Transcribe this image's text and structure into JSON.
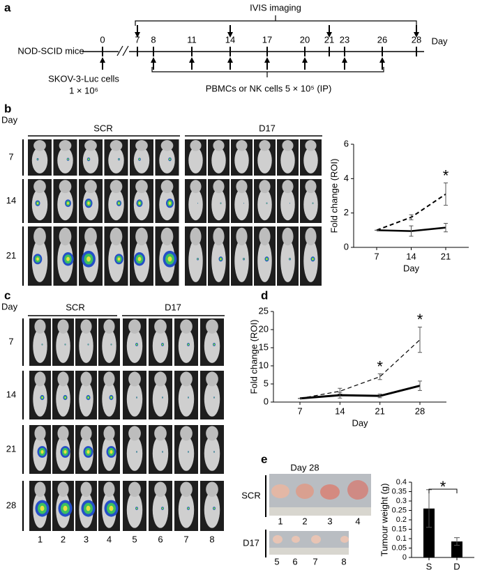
{
  "figure": {
    "a": {
      "label": "a",
      "imaging": "IVIS imaging",
      "mice": "NOD-SCID mice",
      "day": "Day",
      "days": [
        "0",
        "7",
        "8",
        "11",
        "14",
        "17",
        "20",
        "21",
        "23",
        "26",
        "28"
      ],
      "cells": "SKOV-3-Luc cells",
      "dose": "1 × 10⁶",
      "treatment": "PBMCs or NK cells 5 × 10⁵ (IP)"
    },
    "b": {
      "label": "b",
      "day": "Day",
      "groups": [
        "SCR",
        "D17"
      ],
      "rows": [
        "7",
        "14",
        "21"
      ]
    },
    "c": {
      "label": "c",
      "day": "Day",
      "groups": [
        "SCR",
        "D17"
      ],
      "rows": [
        "7",
        "14",
        "21",
        "28"
      ],
      "mice": [
        "1",
        "2",
        "3",
        "4",
        "5",
        "6",
        "7",
        "8"
      ]
    },
    "d": {
      "label": "d"
    },
    "e": {
      "label": "e",
      "photo_title": "Day 28",
      "groups": [
        "SCR",
        "D17"
      ],
      "tumours": [
        [
          "1",
          "2",
          "3",
          "4"
        ],
        [
          "5",
          "6",
          "7",
          "8"
        ]
      ]
    }
  },
  "chart_data": [
    {
      "type": "line",
      "xlabel": "Day",
      "ylabel": "Fold change (ROI)",
      "categories": [
        "7",
        "14",
        "21"
      ],
      "ylim": [
        0,
        6
      ],
      "yticks": [
        0,
        2,
        4,
        6
      ],
      "series": [
        {
          "color": "#000000",
          "dash": true,
          "values": [
            1,
            1.75,
            3.1
          ],
          "errors": [
            0,
            0.15,
            0.65
          ]
        },
        {
          "color": "#000000",
          "dash": false,
          "values": [
            1,
            0.95,
            1.15
          ],
          "errors": [
            0,
            0.3,
            0.25
          ]
        }
      ],
      "annotations": [
        "*"
      ]
    },
    {
      "type": "line",
      "xlabel": "Day",
      "ylabel": "Fold change (ROI)",
      "categories": [
        "7",
        "14",
        "21",
        "28"
      ],
      "ylim": [
        0,
        25
      ],
      "yticks": [
        0,
        5,
        10,
        15,
        20,
        25
      ],
      "series": [
        {
          "color": "#000000",
          "dash": true,
          "values": [
            1,
            3,
            7,
            17.2
          ],
          "errors": [
            0,
            0.8,
            0.8,
            3.5
          ]
        },
        {
          "color": "#000000",
          "dash": false,
          "values": [
            1,
            1.9,
            1.7,
            4.5
          ],
          "errors": [
            0,
            0.8,
            0.5,
            1.3
          ]
        }
      ],
      "annotations": [
        "*",
        "*"
      ]
    },
    {
      "type": "bar",
      "ylabel": "Tumour weight (g)",
      "categories": [
        "S",
        "D"
      ],
      "values": [
        0.26,
        0.085
      ],
      "errors": [
        0.1,
        0.02
      ],
      "color": "#000000",
      "ylim": [
        0,
        0.4
      ],
      "yticks": [
        0,
        0.05,
        0.1,
        0.15,
        0.2,
        0.25,
        0.3,
        0.35,
        0.4
      ],
      "annotations": [
        "*"
      ]
    }
  ]
}
